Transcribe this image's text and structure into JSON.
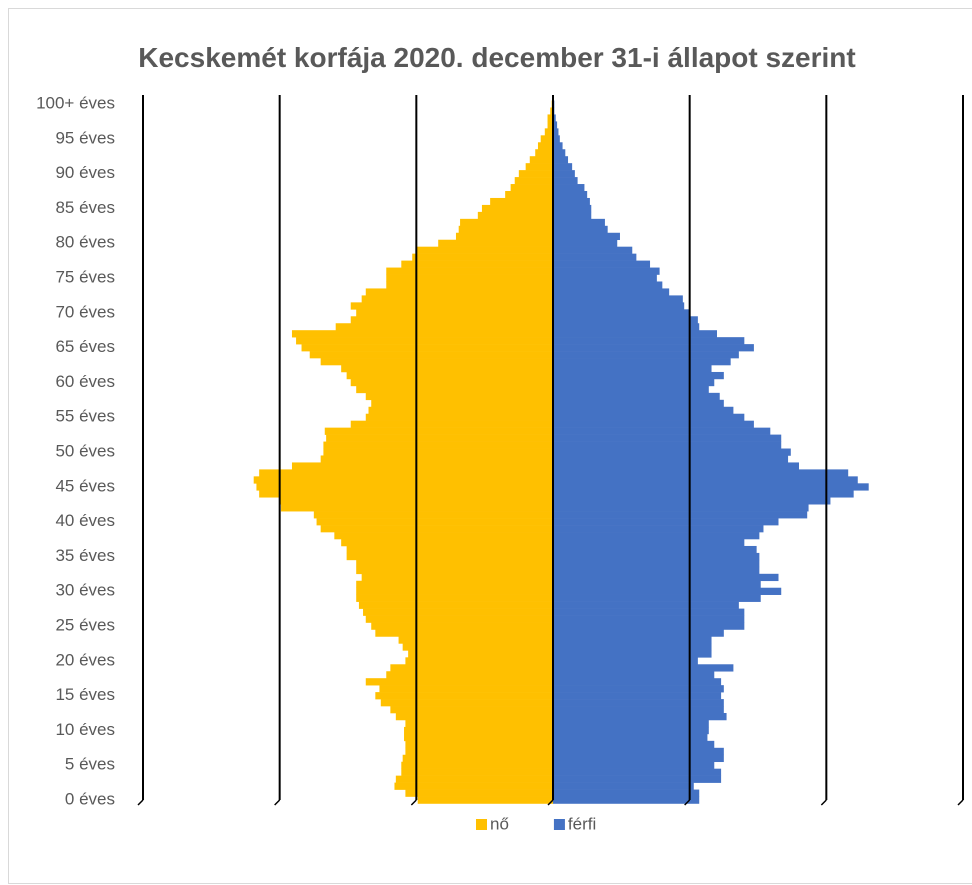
{
  "chart_data": {
    "type": "pyramid",
    "title": "Kecskemét korfája 2020. december 31-i állapot szerint",
    "categories": [
      "0 éves",
      null,
      null,
      null,
      null,
      "5 éves",
      null,
      null,
      null,
      null,
      "10 éves",
      null,
      null,
      null,
      null,
      "15 éves",
      null,
      null,
      null,
      null,
      "20 éves",
      null,
      null,
      null,
      null,
      "25 éves",
      null,
      null,
      null,
      null,
      "30 éves",
      null,
      null,
      null,
      null,
      "35 éves",
      null,
      null,
      null,
      null,
      "40 éves",
      null,
      null,
      null,
      null,
      "45 éves",
      null,
      null,
      null,
      null,
      "50 éves",
      null,
      null,
      null,
      null,
      "55 éves",
      null,
      null,
      null,
      null,
      "60 éves",
      null,
      null,
      null,
      null,
      "65 éves",
      null,
      null,
      null,
      null,
      "70 éves",
      null,
      null,
      null,
      null,
      "75 éves",
      null,
      null,
      null,
      null,
      "80 éves",
      null,
      null,
      null,
      null,
      "85 éves",
      null,
      null,
      null,
      null,
      "90 éves",
      null,
      null,
      null,
      null,
      "95 éves",
      null,
      null,
      null,
      null,
      "100+ éves"
    ],
    "series": [
      {
        "name": "nő",
        "color": "#ffc000",
        "side": "left",
        "values": [
          495,
          540,
          580,
          575,
          555,
          555,
          550,
          540,
          540,
          545,
          545,
          540,
          575,
          595,
          630,
          650,
          635,
          685,
          610,
          595,
          540,
          530,
          550,
          565,
          650,
          665,
          685,
          695,
          710,
          720,
          720,
          720,
          700,
          720,
          720,
          755,
          755,
          775,
          800,
          850,
          865,
          875,
          995,
          1000,
          1075,
          1085,
          1095,
          1075,
          955,
          850,
          840,
          840,
          830,
          835,
          740,
          685,
          675,
          665,
          685,
          720,
          740,
          755,
          775,
          850,
          890,
          920,
          940,
          955,
          795,
          740,
          720,
          740,
          700,
          685,
          610,
          610,
          610,
          555,
          515,
          500,
          420,
          355,
          345,
          340,
          275,
          260,
          230,
          175,
          155,
          140,
          125,
          100,
          85,
          65,
          55,
          45,
          30,
          20,
          20,
          10,
          5
        ]
      },
      {
        "name": "férfi",
        "color": "#4472c4",
        "side": "right",
        "values": [
          535,
          535,
          515,
          615,
          615,
          590,
          625,
          625,
          590,
          565,
          570,
          570,
          635,
          625,
          625,
          615,
          625,
          615,
          590,
          660,
          530,
          580,
          580,
          580,
          625,
          700,
          700,
          700,
          680,
          760,
          835,
          760,
          825,
          755,
          755,
          755,
          745,
          700,
          755,
          770,
          825,
          930,
          935,
          1015,
          1100,
          1155,
          1115,
          1080,
          900,
          860,
          870,
          835,
          835,
          795,
          735,
          700,
          660,
          625,
          610,
          570,
          590,
          625,
          580,
          650,
          680,
          735,
          700,
          600,
          535,
          530,
          500,
          480,
          475,
          425,
          400,
          380,
          390,
          355,
          305,
          290,
          235,
          245,
          200,
          190,
          140,
          140,
          135,
          125,
          115,
          90,
          80,
          70,
          55,
          45,
          35,
          25,
          20,
          15,
          10,
          5,
          5
        ]
      }
    ],
    "xlim": [
      0,
      1500
    ],
    "xticks": [
      0,
      500,
      1000,
      1500
    ],
    "grid": true,
    "legend": "bottom"
  }
}
